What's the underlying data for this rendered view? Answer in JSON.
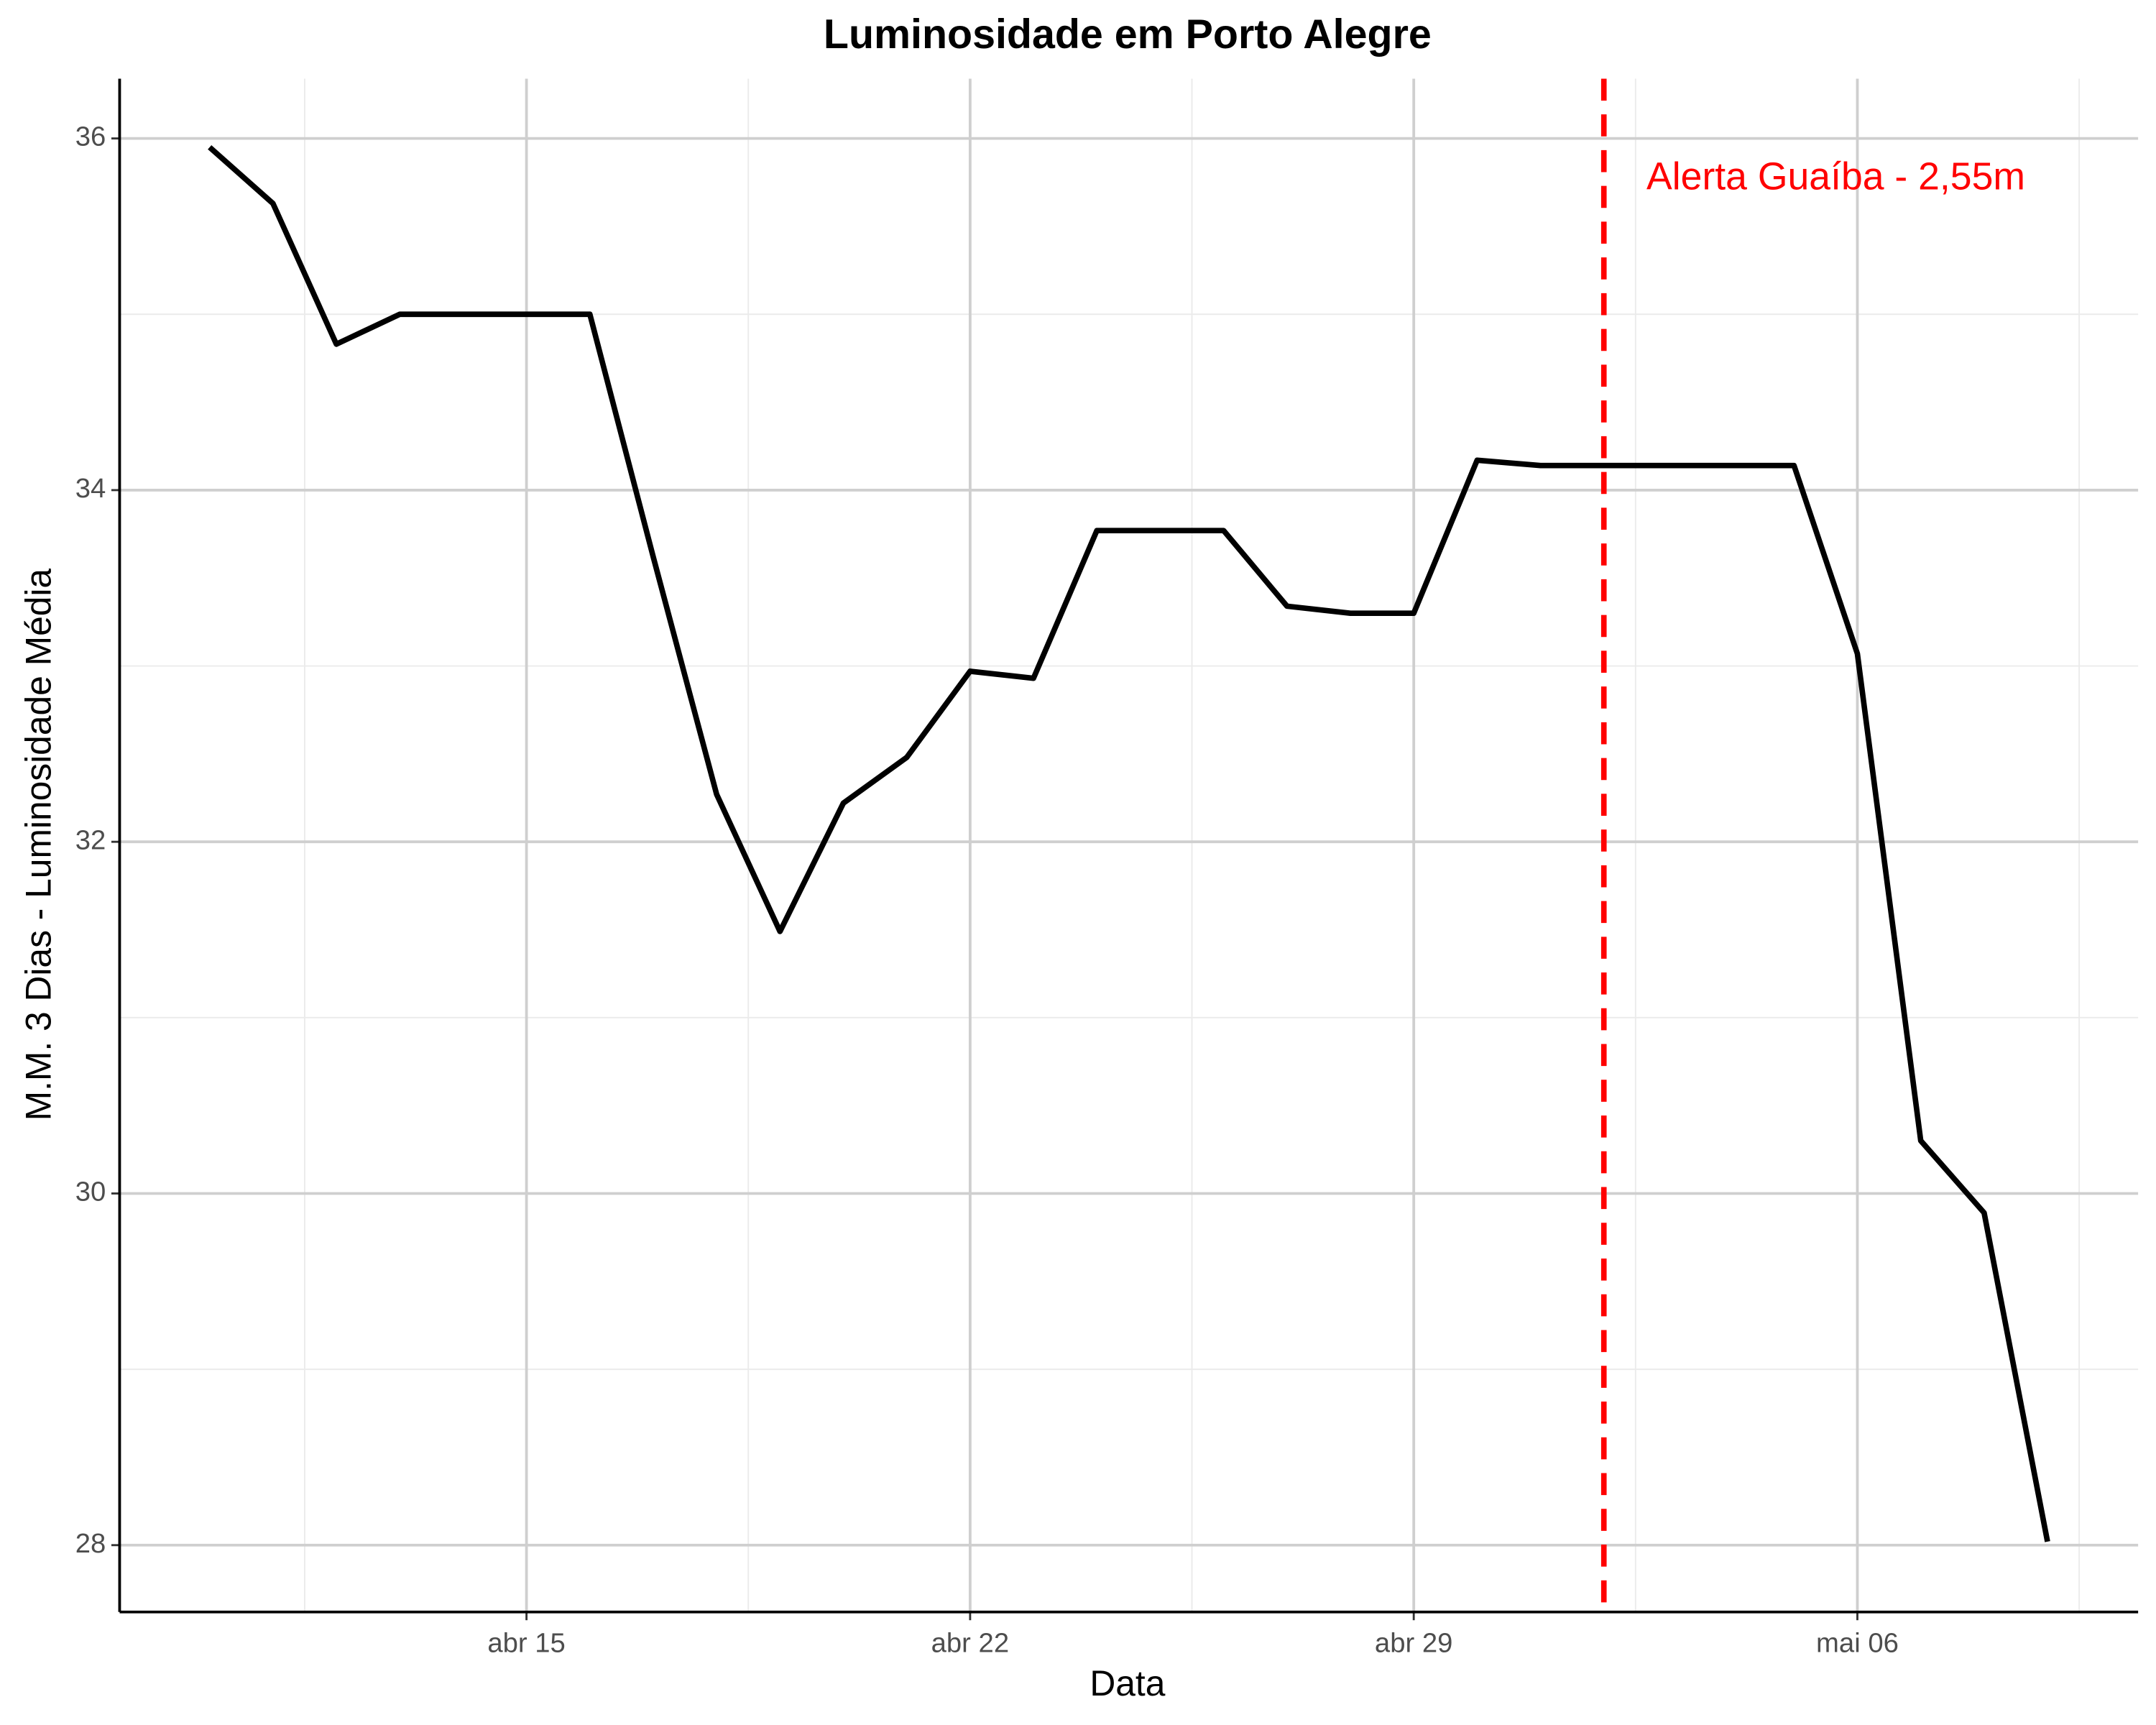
{
  "chart_data": {
    "type": "line",
    "title": "Luminosidade em Porto Alegre",
    "x_label": "Data",
    "y_label": "M.M. 3 Dias - Luminosidade Média",
    "x": [
      "abr 10",
      "abr 11",
      "abr 12",
      "abr 13",
      "abr 14",
      "abr 15",
      "abr 16",
      "abr 17",
      "abr 18",
      "abr 19",
      "abr 20",
      "abr 21",
      "abr 22",
      "abr 23",
      "abr 24",
      "abr 25",
      "abr 26",
      "abr 27",
      "abr 28",
      "abr 29",
      "abr 30",
      "mai 01",
      "mai 02",
      "mai 03",
      "mai 04",
      "mai 05",
      "mai 06",
      "mai 07",
      "mai 08",
      "mai 09"
    ],
    "values": [
      35.95,
      35.63,
      34.83,
      35.0,
      35.0,
      35.0,
      35.0,
      33.62,
      32.27,
      31.49,
      32.22,
      32.48,
      32.97,
      32.93,
      33.77,
      33.77,
      33.77,
      33.34,
      33.3,
      33.3,
      34.17,
      34.14,
      34.14,
      34.14,
      34.14,
      34.14,
      33.07,
      30.3,
      29.89,
      28.02
    ],
    "color": "#000000",
    "xticks": [
      "abr 15",
      "abr 22",
      "abr 29",
      "mai 06"
    ],
    "ylim": [
      27.62,
      36.34
    ],
    "yticks": [
      28,
      30,
      32,
      34,
      36
    ],
    "grid": true,
    "vline": {
      "x": "mai 02",
      "color": "#ff0000",
      "label": "Alerta Guaíba - 2,55m"
    }
  }
}
